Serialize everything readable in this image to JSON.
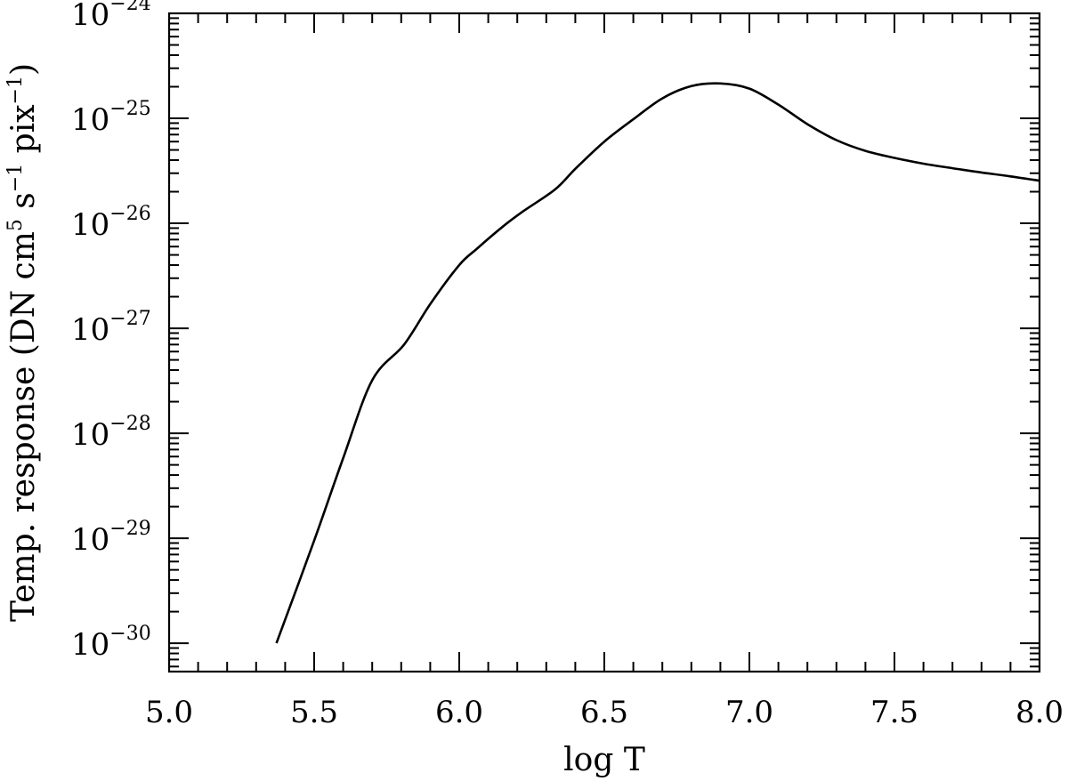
{
  "chart_data": {
    "type": "line",
    "title": "",
    "xlabel": "log T",
    "ylabel": {
      "main": "Temp. response (DN cm",
      "sup1": "5",
      "mid1": " s",
      "sup2": "−1",
      "mid2": " pix",
      "sup3": "−1",
      "end": ")"
    },
    "xlim": [
      5.0,
      8.0
    ],
    "ylim": [
      1e-30,
      1e-24
    ],
    "y_log_range": [
      -30.27,
      -24
    ],
    "y_scale": "log",
    "grid": false,
    "x_ticks": [
      "5.0",
      "5.5",
      "6.0",
      "6.5",
      "7.0",
      "7.5",
      "8.0"
    ],
    "x_tick_values": [
      5.0,
      5.5,
      6.0,
      6.5,
      7.0,
      7.5,
      8.0
    ],
    "y_ticks": [
      {
        "base": "10",
        "exp": "−24",
        "value": 1e-24
      },
      {
        "base": "10",
        "exp": "−25",
        "value": 1e-25
      },
      {
        "base": "10",
        "exp": "−26",
        "value": 1e-26
      },
      {
        "base": "10",
        "exp": "−27",
        "value": 1e-27
      },
      {
        "base": "10",
        "exp": "−28",
        "value": 1e-28
      },
      {
        "base": "10",
        "exp": "−29",
        "value": 1e-29
      },
      {
        "base": "10",
        "exp": "−30",
        "value": 1e-30
      }
    ],
    "series": [
      {
        "x": [
          5.37,
          5.5,
          5.6,
          5.7,
          5.81,
          5.9,
          6.0,
          6.06,
          6.15,
          6.22,
          6.33,
          6.4,
          6.5,
          6.6,
          6.7,
          6.8,
          6.9,
          7.0,
          7.1,
          7.2,
          7.3,
          7.4,
          7.5,
          7.6,
          7.7,
          7.8,
          7.9,
          8.0
        ],
        "y": [
          1e-30,
          9.5e-30,
          5.8e-29,
          3.2e-28,
          7e-28,
          1.7e-27,
          4e-27,
          5.7e-27,
          9.3e-27,
          1.3e-26,
          2.1e-26,
          3.3e-26,
          6e-26,
          9.8e-26,
          1.55e-25,
          2.03e-25,
          2.15e-25,
          1.92e-25,
          1.35e-25,
          8.8e-26,
          6.2e-26,
          4.9e-26,
          4.2e-26,
          3.7e-26,
          3.35e-26,
          3.05e-26,
          2.8e-26,
          2.55e-26
        ]
      }
    ],
    "colors": {
      "axis": "#000000",
      "line": "#000000",
      "background": "#ffffff"
    }
  }
}
